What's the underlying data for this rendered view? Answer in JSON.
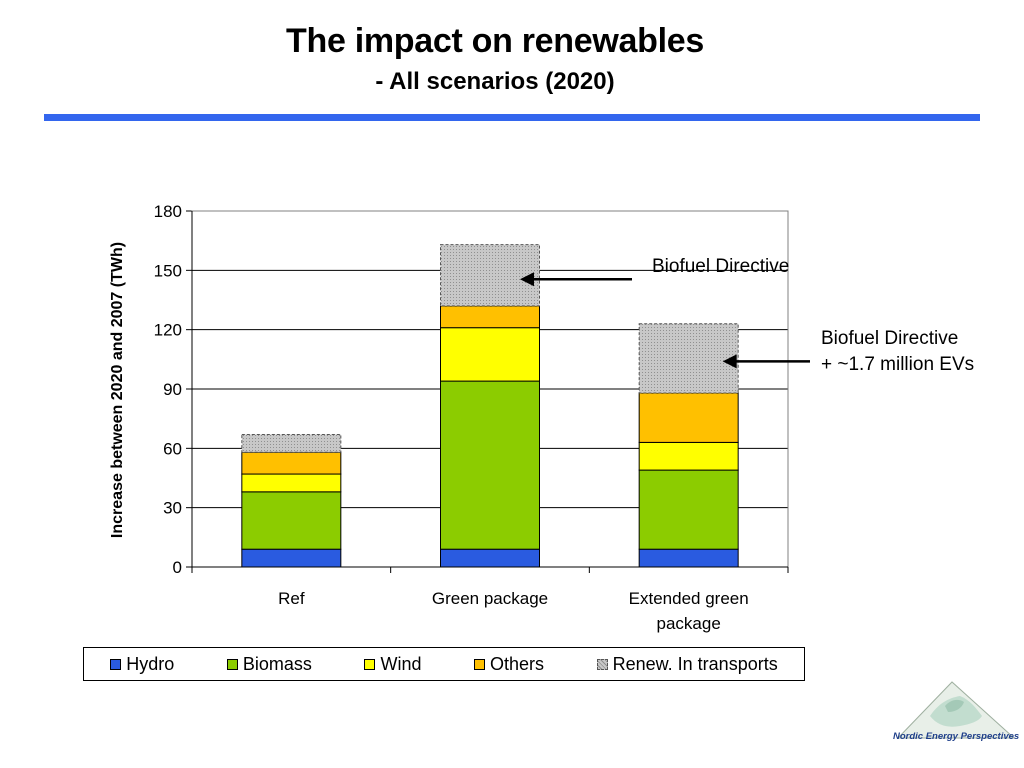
{
  "title": "The impact on renewables",
  "subtitle": "- All scenarios (2020)",
  "colors": {
    "rule": "#3366ee",
    "hydro": "#2a5be0",
    "biomass": "#8ccc00",
    "wind": "#ffff00",
    "others": "#ffc000",
    "transport": "#c0c0c0"
  },
  "chart_data": {
    "type": "bar",
    "stacked": true,
    "categories": [
      "Ref",
      "Green package",
      "Extended green package"
    ],
    "series": [
      {
        "name": "Hydro",
        "values": [
          9,
          9,
          9
        ]
      },
      {
        "name": "Biomass",
        "values": [
          29,
          85,
          40
        ]
      },
      {
        "name": "Wind",
        "values": [
          9,
          27,
          14
        ]
      },
      {
        "name": "Others",
        "values": [
          11,
          11,
          25
        ]
      },
      {
        "name": "Renew. In transports",
        "values": [
          9,
          31,
          35
        ]
      }
    ],
    "ylabel": "Increase between 2020 and 2007 (TWh)",
    "ylim": [
      0,
      180
    ],
    "yticks": [
      "0",
      "30",
      "60",
      "90",
      "120",
      "150",
      "180"
    ],
    "grid": true,
    "legend": "bottom",
    "annotations": [
      {
        "lines": [
          "Biofuel Directive"
        ],
        "target": "Green package"
      },
      {
        "lines": [
          "Biofuel Directive",
          "+ ~1.7 million EVs"
        ],
        "target": "Extended green package"
      }
    ]
  },
  "logo": {
    "text": "Nordic Energy Perspectives"
  }
}
